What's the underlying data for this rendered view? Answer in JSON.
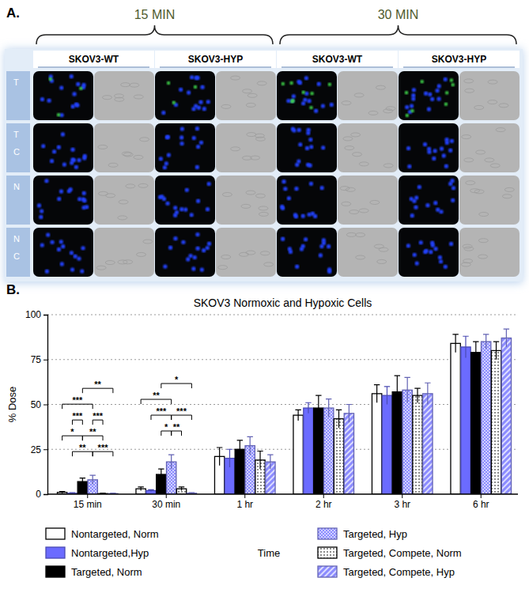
{
  "panel_a": {
    "label": "A.",
    "times": [
      "15 MIN",
      "30 MIN"
    ],
    "columns": [
      "SKOV3-WT",
      "SKOV3-HYP",
      "SKOV3-WT",
      "SKOV3-HYP"
    ],
    "rows": [
      [
        "T"
      ],
      [
        "T",
        "C"
      ],
      [
        "N"
      ],
      [
        "N",
        "C"
      ]
    ]
  },
  "panel_b": {
    "label": "B."
  },
  "chart_data": {
    "type": "bar",
    "title": "SKOV3 Normoxic and Hypoxic Cells",
    "x_label": "Time",
    "y_label": "% Dose",
    "categories": [
      "15 min",
      "30 min",
      "1 hr",
      "2 hr",
      "3 hr",
      "6 hr"
    ],
    "series": [
      {
        "name": "Nontargeted, Norm",
        "color": "#ffffff",
        "values": [
          1,
          3,
          21,
          44,
          56,
          84
        ],
        "errors": [
          0.5,
          1,
          5,
          3,
          5,
          5
        ]
      },
      {
        "name": "Nontargeted,Hyp",
        "color": "#6b6bff",
        "values": [
          0.5,
          2,
          20,
          48,
          55,
          82
        ],
        "errors": [
          0.3,
          0.5,
          5,
          3,
          5,
          6
        ]
      },
      {
        "name": "Targeted, Norm",
        "color": "#000000",
        "values": [
          7,
          11,
          25,
          48,
          57,
          79
        ],
        "errors": [
          2,
          3,
          5,
          7,
          9,
          6
        ]
      },
      {
        "name": "Targeted, Hyp",
        "color": "#8c8cff",
        "values": [
          8,
          18,
          27,
          48,
          58,
          85
        ],
        "errors": [
          2.5,
          4,
          5,
          5,
          7,
          4
        ]
      },
      {
        "name": "Targeted, Compete, Norm",
        "color": "#ffffff",
        "values": [
          0.3,
          3,
          19,
          42,
          55,
          80
        ],
        "errors": [
          0.2,
          1,
          5,
          5,
          4,
          5
        ]
      },
      {
        "name": "Targeted, Compete, Hyp",
        "color": "#8c8cff",
        "values": [
          0.3,
          0.5,
          18,
          45,
          56,
          87
        ],
        "errors": [
          0.2,
          0.3,
          4,
          5,
          6,
          5
        ]
      }
    ],
    "ylim": [
      0,
      100
    ],
    "yticks": [
      0,
      25,
      50,
      75,
      100
    ],
    "grid": true,
    "legend": "bottom",
    "annotations": [
      {
        "text": "**",
        "category": "15 min",
        "between": [
          "Nontargeted,Hyp",
          "Targeted, Hyp"
        ]
      },
      {
        "text": "***",
        "category": "15 min",
        "between": [
          "Targeted, Hyp",
          "Targeted, Compete, Hyp"
        ]
      },
      {
        "text": "*",
        "category": "15 min",
        "between": [
          "Nontargeted, Norm",
          "Targeted, Norm"
        ]
      },
      {
        "text": "**",
        "category": "15 min",
        "between": [
          "Targeted, Norm",
          "Targeted, Compete, Norm"
        ]
      },
      {
        "text": "***",
        "category": "15 min",
        "between": [
          "Nontargeted,Hyp",
          "Targeted, Norm"
        ]
      },
      {
        "text": "***",
        "category": "15 min",
        "between": [
          "Targeted, Hyp",
          "Targeted, Compete, Norm"
        ]
      },
      {
        "text": "***",
        "category": "15 min",
        "between": [
          "Nontargeted, Norm",
          "Targeted, Hyp"
        ]
      },
      {
        "text": "**",
        "category": "15 min",
        "between": [
          "Targeted, Norm",
          "Targeted, Compete, Hyp"
        ]
      },
      {
        "text": "*",
        "category": "30 min",
        "between": [
          "Targeted, Norm",
          "Targeted, Hyp"
        ]
      },
      {
        "text": "**",
        "category": "30 min",
        "between": [
          "Targeted, Hyp",
          "Targeted, Compete, Norm"
        ]
      },
      {
        "text": "***",
        "category": "30 min",
        "between": [
          "Nontargeted,Hyp",
          "Targeted, Hyp"
        ]
      },
      {
        "text": "***",
        "category": "30 min",
        "between": [
          "Targeted, Hyp",
          "Targeted, Compete, Hyp"
        ]
      },
      {
        "text": "**",
        "category": "30 min",
        "between": [
          "Nontargeted, Norm",
          "Targeted, Hyp"
        ]
      },
      {
        "text": "*",
        "category": "30 min",
        "between": [
          "Targeted, Norm",
          "Targeted, Compete, Hyp"
        ]
      }
    ]
  }
}
